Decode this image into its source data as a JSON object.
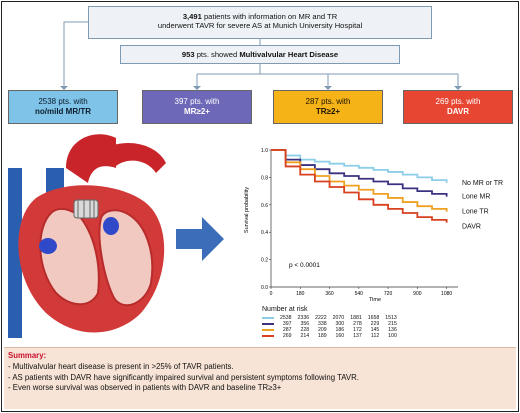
{
  "flow": {
    "top_line1_num": "3,491",
    "top_line1_rest": " patients with information on MR and TR",
    "top_line2": "underwent TAVR for severe AS at Munich University Hospital",
    "mid_num": "953",
    "mid_mid": " pts. showed ",
    "mid_bold": "Multivalvular Heart Disease"
  },
  "categories": [
    {
      "count": "2538 pts. with",
      "desc": "no/mild MR/TR",
      "color": "#7fc4e8"
    },
    {
      "count": "397 pts. with",
      "desc": "MR≥2+",
      "color": "#6d68b8"
    },
    {
      "count": "287 pts. with",
      "desc": "TR≥2+",
      "color": "#f5b318"
    },
    {
      "count": "269 pts. with",
      "desc": "DAVR",
      "color": "#e64632"
    }
  ],
  "chart_data": {
    "type": "line",
    "xlabel": "Time",
    "ylabel": "Survival probability",
    "x_ticks": [
      "0",
      "180",
      "360",
      "540",
      "720",
      "900",
      "1080"
    ],
    "y_ticks": [
      "0.0",
      "0.2",
      "0.4",
      "0.6",
      "0.8",
      "1.0"
    ],
    "xlim": [
      0,
      1150
    ],
    "ylim": [
      0,
      1.0
    ],
    "annotation": "p < 0.0001",
    "series": [
      {
        "name": "No MR or TR",
        "color": "#8ccde8",
        "x": [
          0,
          90,
          180,
          270,
          360,
          450,
          540,
          630,
          720,
          810,
          900,
          990,
          1080
        ],
        "y": [
          1.0,
          0.96,
          0.93,
          0.915,
          0.9,
          0.885,
          0.87,
          0.855,
          0.84,
          0.82,
          0.8,
          0.78,
          0.76
        ]
      },
      {
        "name": "Lone MR",
        "color": "#3a3280",
        "x": [
          0,
          90,
          180,
          270,
          360,
          450,
          540,
          630,
          720,
          810,
          900,
          990,
          1080
        ],
        "y": [
          1.0,
          0.93,
          0.89,
          0.86,
          0.83,
          0.81,
          0.79,
          0.77,
          0.75,
          0.72,
          0.7,
          0.68,
          0.66
        ]
      },
      {
        "name": "Lone TR",
        "color": "#f0a020",
        "x": [
          0,
          90,
          180,
          270,
          360,
          450,
          540,
          630,
          720,
          810,
          900,
          990,
          1080
        ],
        "y": [
          1.0,
          0.91,
          0.86,
          0.81,
          0.77,
          0.74,
          0.71,
          0.68,
          0.65,
          0.62,
          0.59,
          0.57,
          0.55
        ]
      },
      {
        "name": "DAVR",
        "color": "#d84020",
        "x": [
          0,
          90,
          180,
          270,
          360,
          450,
          540,
          630,
          720,
          810,
          900,
          990,
          1080
        ],
        "y": [
          1.0,
          0.88,
          0.82,
          0.77,
          0.73,
          0.69,
          0.64,
          0.6,
          0.57,
          0.54,
          0.51,
          0.49,
          0.47
        ]
      }
    ]
  },
  "risk": {
    "title": "Number at risk",
    "rows": [
      {
        "color": "#8ccde8",
        "values": [
          "2538",
          "2336",
          "2222",
          "2070",
          "1881",
          "1658",
          "1513"
        ]
      },
      {
        "color": "#3a3280",
        "values": [
          "397",
          "356",
          "338",
          "300",
          "278",
          "229",
          "215"
        ]
      },
      {
        "color": "#f0a020",
        "values": [
          "287",
          "228",
          "209",
          "186",
          "172",
          "145",
          "136"
        ]
      },
      {
        "color": "#d84020",
        "values": [
          "269",
          "214",
          "189",
          "160",
          "137",
          "112",
          "100"
        ]
      }
    ]
  },
  "summary": {
    "title": "Summary:",
    "items": [
      "Multivalvular heart disease is present in >25% of TAVR patients.",
      "AS patients with DAVR have significantly impaired survival and persistent symptoms following TAVR.",
      "Even worse survival was observed in patients with DAVR and baseline TR≥3+"
    ]
  }
}
